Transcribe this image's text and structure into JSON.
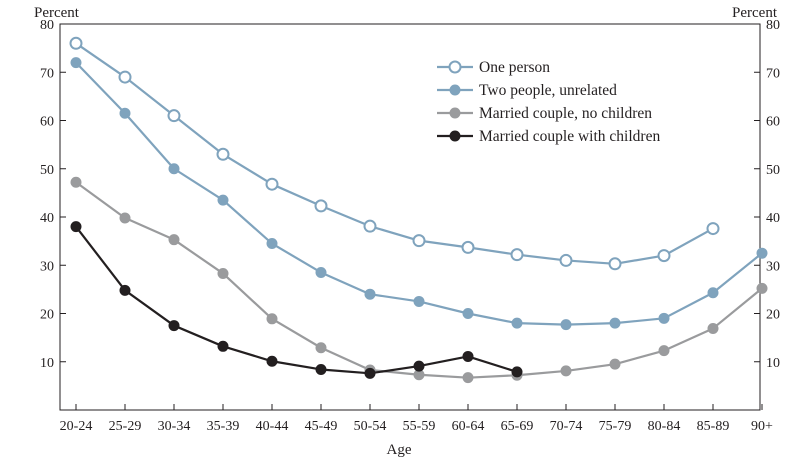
{
  "chart_data": {
    "type": "line",
    "xlabel": "Age",
    "ylabel_left": "Percent",
    "ylabel_right": "Percent",
    "ylim": [
      0,
      80
    ],
    "yticks": [
      10,
      20,
      30,
      40,
      50,
      60,
      70,
      80
    ],
    "categories": [
      "20-24",
      "25-29",
      "30-34",
      "35-39",
      "40-44",
      "45-49",
      "50-54",
      "55-59",
      "60-64",
      "65-69",
      "70-74",
      "75-79",
      "80-84",
      "85-89",
      "90+"
    ],
    "legend_position": "top-right",
    "grid": false,
    "series": [
      {
        "name": "One person",
        "marker": "hollow-circle",
        "color": "#7fa3bd",
        "values": [
          76.0,
          69.0,
          61.0,
          53.0,
          46.8,
          42.3,
          38.1,
          35.1,
          33.7,
          32.2,
          31.0,
          30.3,
          32.0,
          37.6,
          null
        ]
      },
      {
        "name": "Two people, unrelated",
        "marker": "filled-circle",
        "color": "#7fa3bd",
        "values": [
          72.0,
          61.5,
          50.0,
          43.5,
          34.5,
          28.5,
          24.0,
          22.5,
          20.0,
          18.0,
          17.7,
          18.0,
          19.0,
          24.3,
          32.5
        ]
      },
      {
        "name": "Married couple, no children",
        "marker": "filled-circle",
        "color": "#9a9b9d",
        "values": [
          47.2,
          39.8,
          35.3,
          28.3,
          18.9,
          12.9,
          8.3,
          7.3,
          6.7,
          7.2,
          8.1,
          9.5,
          12.3,
          16.9,
          25.2
        ]
      },
      {
        "name": "Married couple with children",
        "marker": "filled-circle",
        "color": "#231f20",
        "values": [
          38.0,
          24.8,
          17.5,
          13.2,
          10.1,
          8.4,
          7.6,
          9.1,
          11.1,
          7.9,
          null,
          null,
          null,
          null,
          null
        ]
      }
    ]
  }
}
